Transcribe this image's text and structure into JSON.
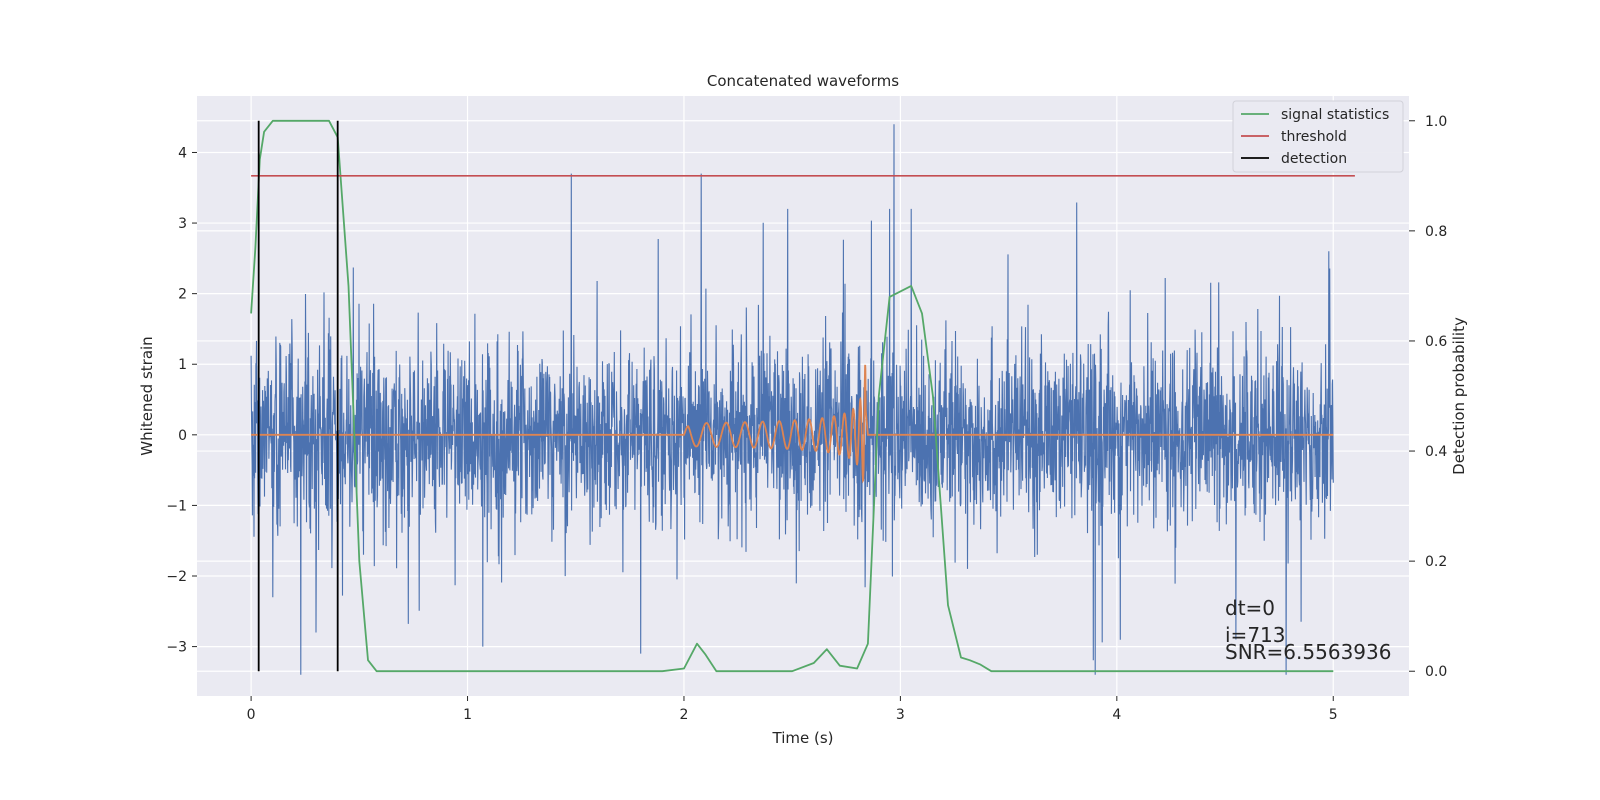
{
  "chart_data": {
    "type": "line",
    "title": "Concatenated waveforms",
    "xlabel": "Time (s)",
    "ylabel": "Whitened strain",
    "y2label": "Detection probability",
    "xlim": [
      -0.25,
      5.35
    ],
    "ylim": [
      -3.7,
      4.8
    ],
    "y2lim": [
      -0.045,
      1.045
    ],
    "xticks": [
      0,
      1,
      2,
      3,
      4,
      5
    ],
    "yticks": [
      -3,
      -2,
      -1,
      0,
      1,
      2,
      3,
      4
    ],
    "y2ticks": [
      0.0,
      0.2,
      0.4,
      0.6,
      0.8,
      1.0
    ],
    "grid": true,
    "legend_position": "top-right",
    "legend": [
      {
        "label": "signal statistics",
        "color": "#55a868"
      },
      {
        "label": "threshold",
        "color": "#c44e52"
      },
      {
        "label": "detection",
        "color": "#000000"
      }
    ],
    "colors": {
      "strain": "#4c72b0",
      "template": "#dd8452",
      "signal_statistics": "#55a868",
      "threshold": "#c44e52",
      "detection": "#000000",
      "plot_background": "#eaeaf2",
      "grid": "#ffffff"
    },
    "strain_noise": {
      "t_range": [
        0,
        5
      ],
      "spike_samples": [
        [
          0.1,
          -2.3
        ],
        [
          0.3,
          -2.8
        ],
        [
          0.4,
          -3.1
        ],
        [
          1.07,
          -3.0
        ],
        [
          1.48,
          3.7
        ],
        [
          1.8,
          -3.1
        ],
        [
          2.08,
          3.7
        ],
        [
          2.48,
          3.2
        ],
        [
          2.95,
          3.2
        ],
        [
          2.97,
          4.4
        ],
        [
          3.05,
          3.2
        ],
        [
          3.9,
          -3.4
        ],
        [
          4.55,
          -2.9
        ],
        [
          4.98,
          2.6
        ]
      ]
    },
    "template_chirp": {
      "t_start": 2.0,
      "t_end": 2.84,
      "amplitude_end": 1.3,
      "baseline": 0
    },
    "signal_statistics": {
      "axis": "right",
      "x": [
        0.0,
        0.02,
        0.04,
        0.06,
        0.1,
        0.2,
        0.3,
        0.36,
        0.4,
        0.45,
        0.5,
        0.54,
        0.58,
        1.0,
        1.5,
        1.9,
        2.0,
        2.06,
        2.1,
        2.15,
        2.2,
        2.5,
        2.6,
        2.66,
        2.72,
        2.8,
        2.85,
        2.9,
        2.95,
        3.05,
        3.1,
        3.15,
        3.22,
        3.28,
        3.32,
        3.37,
        3.42,
        3.5,
        4.0,
        5.0
      ],
      "y": [
        0.65,
        0.77,
        0.93,
        0.98,
        1.0,
        1.0,
        1.0,
        1.0,
        0.97,
        0.7,
        0.2,
        0.02,
        0.0,
        0.0,
        0.0,
        0.0,
        0.005,
        0.05,
        0.03,
        0.0,
        0.0,
        0.0,
        0.015,
        0.04,
        0.01,
        0.005,
        0.05,
        0.5,
        0.68,
        0.7,
        0.65,
        0.5,
        0.12,
        0.025,
        0.02,
        0.012,
        0.0,
        0.0,
        0.0,
        0.0
      ]
    },
    "threshold": {
      "axis": "right",
      "value": 0.9,
      "x_range": [
        0,
        5.1
      ]
    },
    "detections": {
      "axis": "right",
      "x": [
        0.035,
        0.4
      ],
      "y_range": [
        0.0,
        1.0
      ]
    },
    "annotations": {
      "x": 4.5,
      "lines": [
        "dt=0",
        "i=713",
        "SNR=6.5563936"
      ]
    }
  }
}
